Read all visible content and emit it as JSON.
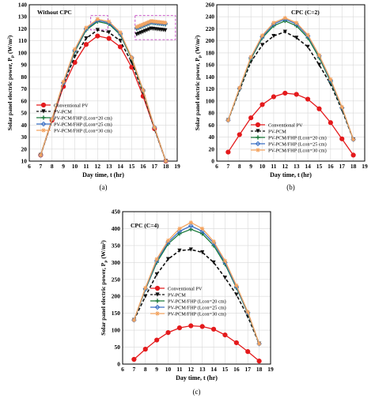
{
  "chart_data": [
    {
      "type": "line",
      "panel_label": "(a)",
      "annotation": "Without CPC",
      "xlabel": "Day time, t (hr)",
      "ylabel": "Solar panel electric power, P",
      "ylabel_sub": "p",
      "ylabel_unit": " (W/m²)",
      "xlim": [
        6,
        19
      ],
      "ylim": [
        10,
        140
      ],
      "xticks": [
        6,
        7,
        8,
        9,
        10,
        11,
        12,
        13,
        14,
        15,
        16,
        17,
        18,
        19
      ],
      "yticks": [
        10,
        20,
        30,
        40,
        50,
        60,
        70,
        80,
        90,
        100,
        110,
        120,
        130,
        140
      ],
      "grid": true,
      "legend_position": "bottom-left",
      "x": [
        7,
        8,
        9,
        10,
        11,
        12,
        13,
        14,
        15,
        16,
        17,
        18
      ],
      "series": [
        {
          "name": "Conventional PV",
          "color": "#e41a1c",
          "marker": "circle",
          "dash": false,
          "values": [
            15,
            44,
            72,
            92,
            107,
            114,
            112,
            105,
            88,
            64,
            37,
            10
          ]
        },
        {
          "name": "PV-PCM",
          "color": "#111111",
          "marker": "triangle-down",
          "dash": true,
          "values": [
            15,
            44,
            74,
            97,
            112,
            119,
            117,
            110,
            92,
            67,
            37,
            10
          ]
        },
        {
          "name": "PV-PCM/FHP (Lcon=20 cm)",
          "color": "#1a7a3a",
          "marker": "plus",
          "dash": false,
          "values": [
            15,
            45,
            75,
            101,
            119,
            126,
            124,
            115,
            95,
            68,
            38,
            10
          ]
        },
        {
          "name": "PV-PCM/FHP (Lcon=25 cm)",
          "color": "#3a6fc4",
          "marker": "diamond",
          "dash": false,
          "values": [
            15,
            45,
            75,
            102,
            120,
            127,
            125,
            116,
            96,
            69,
            38,
            10
          ]
        },
        {
          "name": "PV-PCM/FHP (Lcon=30 cm)",
          "color": "#f4a460",
          "marker": "star",
          "dash": false,
          "values": [
            15,
            45,
            76,
            103,
            121,
            128,
            126,
            117,
            96,
            69,
            38,
            10
          ]
        }
      ]
    },
    {
      "type": "line",
      "panel_label": "(b)",
      "annotation": "CPC (C=2)",
      "xlabel": "Day time, t (hr)",
      "ylabel": "Solar panel electric power, P",
      "ylabel_sub": "p",
      "ylabel_unit": " (W/m²)",
      "xlim": [
        6,
        19
      ],
      "ylim": [
        0,
        260
      ],
      "xticks": [
        6,
        7,
        8,
        9,
        10,
        11,
        12,
        13,
        14,
        15,
        16,
        17,
        18,
        19
      ],
      "yticks": [
        0,
        20,
        40,
        60,
        80,
        100,
        120,
        140,
        160,
        180,
        200,
        220,
        240,
        260
      ],
      "grid": true,
      "legend_position": "bottom-left",
      "x": [
        7,
        8,
        9,
        10,
        11,
        12,
        13,
        14,
        15,
        16,
        17,
        18
      ],
      "series": [
        {
          "name": "Conventional PV",
          "color": "#e41a1c",
          "marker": "circle",
          "dash": false,
          "values": [
            15,
            44,
            72,
            94,
            107,
            113,
            111,
            103,
            87,
            64,
            37,
            10
          ]
        },
        {
          "name": "PV-PCM",
          "color": "#111111",
          "marker": "triangle-down",
          "dash": true,
          "values": [
            68,
            118,
            165,
            193,
            208,
            215,
            205,
            190,
            160,
            128,
            85,
            36
          ]
        },
        {
          "name": "PV-PCM/FHP (Lcon=20 cm)",
          "color": "#1a7a3a",
          "marker": "plus",
          "dash": false,
          "values": [
            68,
            120,
            170,
            205,
            225,
            233,
            225,
            205,
            172,
            132,
            88,
            36
          ]
        },
        {
          "name": "PV-PCM/FHP (Lcon=25 cm)",
          "color": "#3a6fc4",
          "marker": "diamond",
          "dash": false,
          "values": [
            68,
            121,
            172,
            207,
            228,
            236,
            228,
            208,
            175,
            134,
            89,
            36
          ]
        },
        {
          "name": "PV-PCM/FHP (Lcon=30 cm)",
          "color": "#f4a460",
          "marker": "star",
          "dash": false,
          "values": [
            68,
            122,
            173,
            209,
            230,
            238,
            230,
            210,
            176,
            136,
            90,
            36
          ]
        }
      ]
    },
    {
      "type": "line",
      "panel_label": "(c)",
      "annotation": "CPC (C=4)",
      "xlabel": "Day time, t (hr)",
      "ylabel": "Solar panel electric power, P",
      "ylabel_sub": "p",
      "ylabel_unit": " (W/m²)",
      "xlim": [
        6,
        19
      ],
      "ylim": [
        0,
        450
      ],
      "xticks": [
        6,
        7,
        8,
        9,
        10,
        11,
        12,
        13,
        14,
        15,
        16,
        17,
        18,
        19
      ],
      "yticks": [
        0,
        50,
        100,
        150,
        200,
        250,
        300,
        350,
        400,
        450
      ],
      "grid": true,
      "legend_position": "bottom-center",
      "x": [
        7,
        8,
        9,
        10,
        11,
        12,
        13,
        14,
        15,
        16,
        17,
        18
      ],
      "series": [
        {
          "name": "Conventional PV",
          "color": "#e41a1c",
          "marker": "circle",
          "dash": false,
          "values": [
            14,
            44,
            71,
            93,
            107,
            113,
            111,
            103,
            86,
            63,
            37,
            9
          ]
        },
        {
          "name": "PV-PCM",
          "color": "#111111",
          "marker": "triangle-down",
          "dash": true,
          "values": [
            130,
            200,
            265,
            310,
            335,
            338,
            330,
            300,
            255,
            205,
            140,
            60
          ]
        },
        {
          "name": "PV-PCM/FHP (Lcon=20 cm)",
          "color": "#1a7a3a",
          "marker": "plus",
          "dash": false,
          "values": [
            130,
            220,
            300,
            355,
            385,
            398,
            385,
            350,
            295,
            225,
            150,
            60
          ]
        },
        {
          "name": "PV-PCM/FHP (Lcon=25 cm)",
          "color": "#3a6fc4",
          "marker": "diamond",
          "dash": false,
          "values": [
            130,
            222,
            305,
            360,
            392,
            408,
            392,
            357,
            300,
            228,
            152,
            60
          ]
        },
        {
          "name": "PV-PCM/FHP (Lcon=30 cm)",
          "color": "#f4a460",
          "marker": "star",
          "dash": false,
          "values": [
            130,
            225,
            310,
            365,
            400,
            418,
            400,
            362,
            305,
            232,
            154,
            60
          ]
        }
      ]
    }
  ]
}
